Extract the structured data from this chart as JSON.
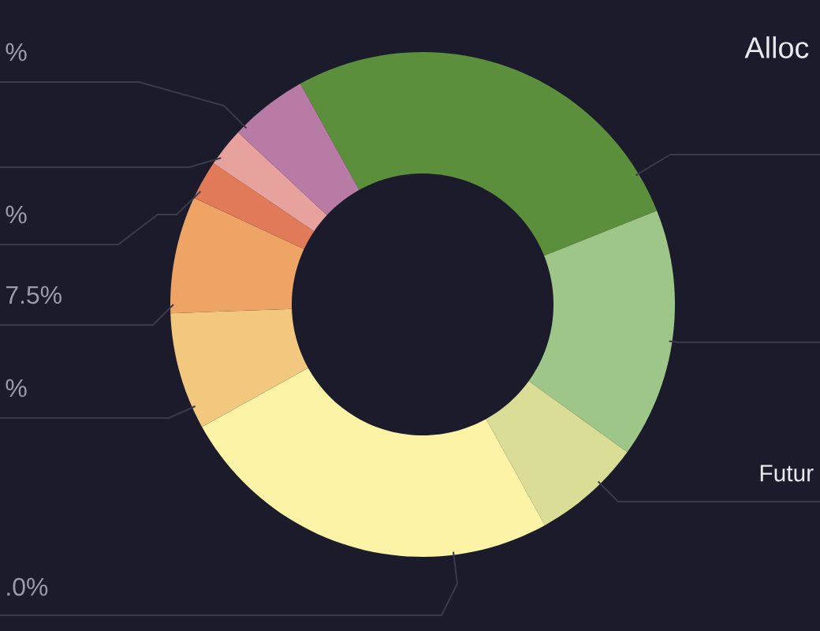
{
  "chart_data": {
    "type": "donut",
    "title": "Alloc",
    "categories": [
      null,
      null,
      "Futur",
      null,
      null,
      null,
      null,
      null,
      null
    ],
    "values": [
      27,
      16,
      7,
      25,
      7.5,
      7.5,
      2.5,
      2.5,
      5
    ],
    "colors": [
      "#5b8f3c",
      "#9dc688",
      "#d9dd95",
      "#fcf3a6",
      "#f2c87e",
      "#eda465",
      "#e07a58",
      "#e8a29e",
      "#b77ba6"
    ],
    "value_labels": [
      null,
      null,
      null,
      null,
      "%",
      "7.5%",
      "%",
      null,
      "%"
    ],
    "annotations": [
      ".0%"
    ]
  }
}
